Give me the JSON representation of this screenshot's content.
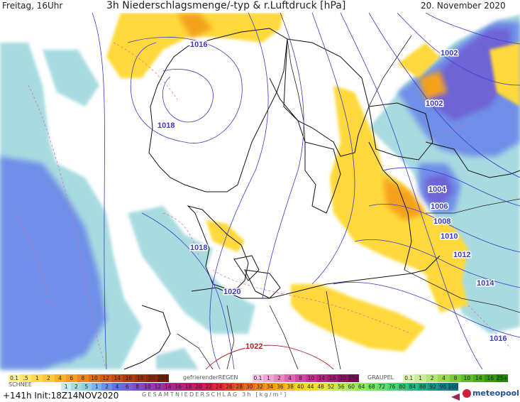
{
  "header": {
    "day_time": "Freitag, 16Uhr",
    "title": "3h Niederschlagsmenge/-typ & r.Luftdruck [hPa]",
    "date": "20. November 2020"
  },
  "isobar_labels": [
    "1016",
    "1018",
    "1018",
    "1020",
    "1022",
    "1002",
    "1002",
    "1004",
    "1006",
    "1008",
    "1010",
    "1012",
    "1014",
    "1016"
  ],
  "legend": {
    "rain_values": [
      "0.1",
      ".5",
      "1",
      "2",
      "4",
      "6",
      "8",
      "10",
      "12",
      "14",
      "16",
      "18",
      "20",
      "25+"
    ],
    "rain_colors": [
      "#fff3a0",
      "#ffe66a",
      "#ffd84a",
      "#ffc83a",
      "#ffb02a",
      "#f79a1f",
      "#ef861a",
      "#e07015",
      "#d35d12",
      "#c44c10",
      "#b23b0d",
      "#a0300b",
      "#8c2609",
      "#701c07"
    ],
    "snow_label": "SCHNEE",
    "snow_values": [
      "1",
      "2",
      "5",
      "1",
      "2",
      "4",
      "6",
      "8",
      "10",
      "12",
      "14",
      "16",
      "18",
      "20",
      "22",
      "24",
      "26",
      "28",
      "30",
      "32",
      "34",
      "36",
      "38",
      "40",
      "44",
      "48",
      "52",
      "56",
      "60",
      "64",
      "68",
      "72",
      "76",
      "80",
      "84",
      "88",
      "92",
      "96",
      "100"
    ],
    "freezing_label": "gefrierenderREGEN",
    "freezing_values": [
      "0.1",
      "1",
      "2",
      "4",
      "8",
      "10",
      "14",
      "16",
      "20",
      "25+"
    ],
    "freezing_colors": [
      "#f6c7e3",
      "#f0a6d4",
      "#e986c4",
      "#e066b4",
      "#d646a4",
      "#c93294",
      "#b82484",
      "#a51a74",
      "#8f1364",
      "#790d54"
    ],
    "graupel_label": "GRAUPEL",
    "graupel_values": [
      "0.1",
      "1",
      "2",
      "4",
      "8",
      "10",
      "14",
      "16",
      "25+"
    ],
    "graupel_colors": [
      "#dff5b8",
      "#c9ed96",
      "#b2e474",
      "#98d955",
      "#7ccd3a",
      "#61bf25",
      "#48ae16",
      "#339b0b",
      "#238605"
    ]
  },
  "footer": {
    "run_info": "+141h  Init:18Z14NOV2020",
    "gesamt_label": "GESAMTNIEDERSCHLAG 3h [kg/m²]",
    "logo": "meteopool.org"
  },
  "colors": {
    "precip_yellow": "#ffd93a",
    "precip_orange": "#f4a21f",
    "precip_light_blue": "#a8dbe0",
    "precip_blue": "#6f8fe8",
    "precip_violet": "#6f63d6",
    "isobar": "#3a3acc",
    "isobar_high": "#aa2222",
    "coast": "#111111",
    "border": "#222222"
  }
}
